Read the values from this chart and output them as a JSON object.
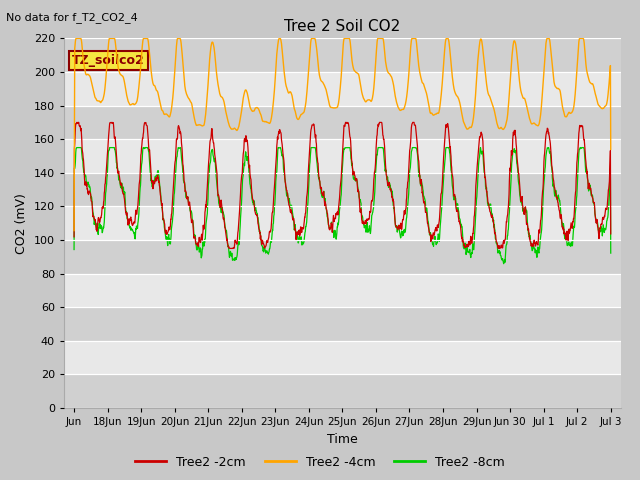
{
  "title": "Tree 2 Soil CO2",
  "subtitle": "No data for f_T2_CO2_4",
  "xlabel": "Time",
  "ylabel": "CO2 (mV)",
  "ylim": [
    0,
    220
  ],
  "yticks": [
    0,
    20,
    40,
    60,
    80,
    100,
    120,
    140,
    160,
    180,
    200,
    220
  ],
  "annotation_box": "TZ_soilco2",
  "annotation_color": "#8B0000",
  "annotation_bg": "#f5e642",
  "annotation_border": "#8B0000",
  "fig_bg_color": "#c8c8c8",
  "plot_bg_color": "#e8e8e8",
  "band_colors": [
    "#dcdcdc",
    "#e8e8e8"
  ],
  "legend": [
    {
      "label": "Tree2 -2cm",
      "color": "#cc0000"
    },
    {
      "label": "Tree2 -4cm",
      "color": "#ffa500"
    },
    {
      "label": "Tree2 -8cm",
      "color": "#00cc00"
    }
  ],
  "xtick_labels": [
    "Jun",
    "18Jun",
    "19Jun",
    "20Jun",
    "21Jun",
    "22Jun",
    "23Jun",
    "24Jun",
    "25Jun",
    "26Jun",
    "27Jun",
    "28Jun",
    "29Jun",
    "Jun 30",
    "Jul 1",
    "Jul 2",
    "Jul 3"
  ],
  "num_points": 1600
}
